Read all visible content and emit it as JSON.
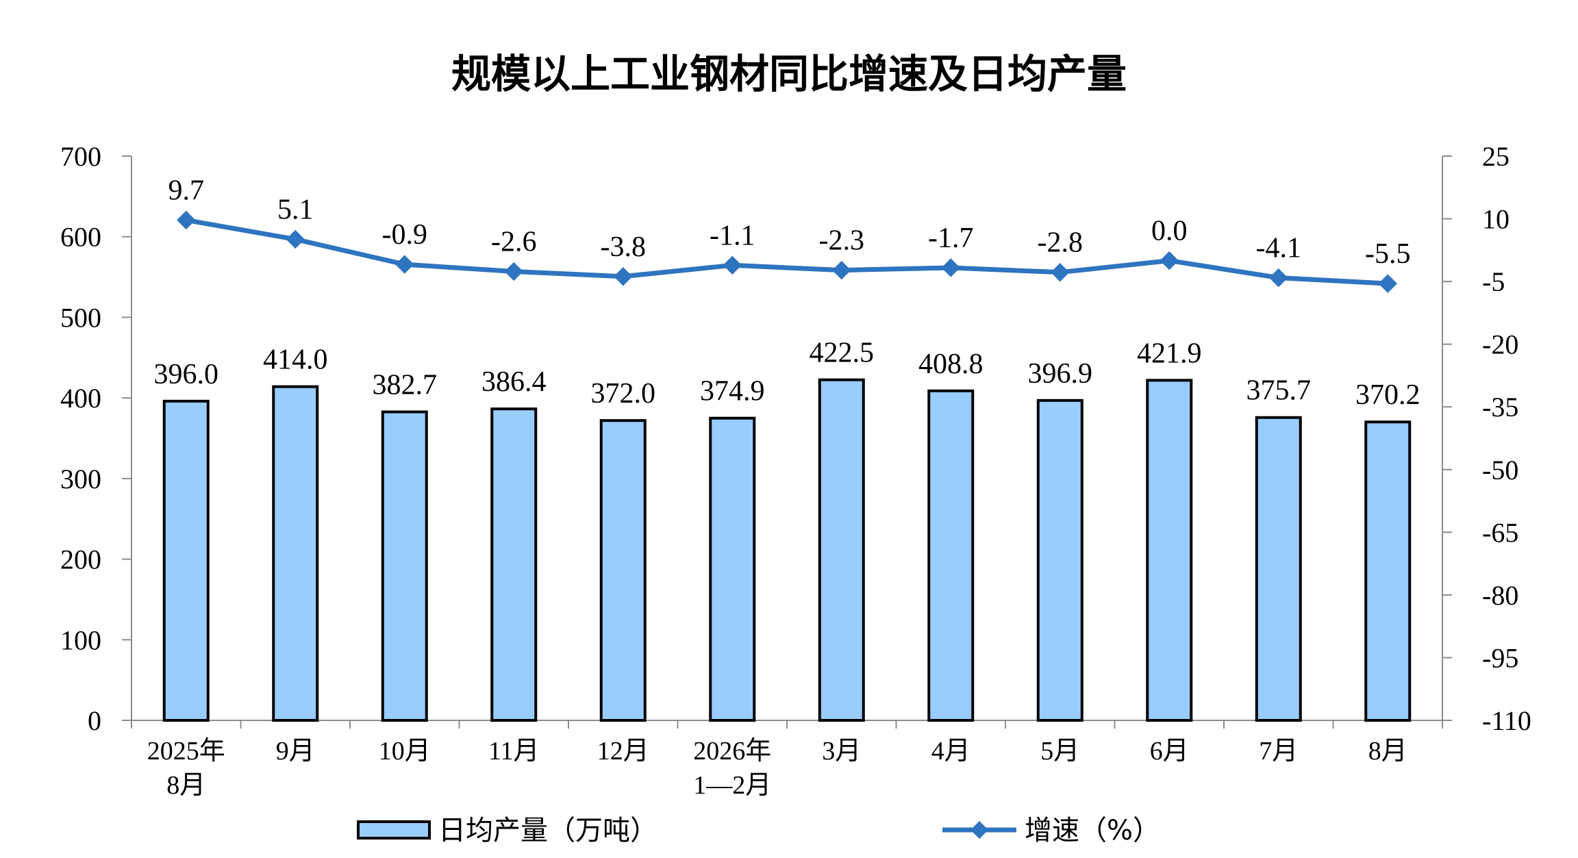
{
  "chart_data": {
    "type": "bar+line",
    "title": "规模以上工业钢材同比增速及日均产量",
    "categories": [
      [
        "2025年",
        "8月"
      ],
      [
        "9月"
      ],
      [
        "10月"
      ],
      [
        "11月"
      ],
      [
        "12月"
      ],
      [
        "2026年",
        "1—2月"
      ],
      [
        "3月"
      ],
      [
        "4月"
      ],
      [
        "5月"
      ],
      [
        "6月"
      ],
      [
        "7月"
      ],
      [
        "8月"
      ]
    ],
    "series": [
      {
        "name": "日均产量（万吨）",
        "type": "bar",
        "axis": "left",
        "color": "#99CCFF",
        "values": [
          396.0,
          414.0,
          382.7,
          386.4,
          372.0,
          374.9,
          422.5,
          408.8,
          396.9,
          421.9,
          375.7,
          370.2
        ],
        "labels": [
          "396.0",
          "414.0",
          "382.7",
          "386.4",
          "372.0",
          "374.9",
          "422.5",
          "408.8",
          "396.9",
          "421.9",
          "375.7",
          "370.2"
        ]
      },
      {
        "name": "增速（%）",
        "type": "line",
        "axis": "right",
        "color": "#2E74C0",
        "marker": "diamond",
        "values": [
          9.7,
          5.1,
          -0.9,
          -2.6,
          -3.8,
          -1.1,
          -2.3,
          -1.7,
          -2.8,
          0.0,
          -4.1,
          -5.5
        ],
        "labels": [
          "9.7",
          "5.1",
          "-0.9",
          "-2.6",
          "-3.8",
          "-1.1",
          "-2.3",
          "-1.7",
          "-2.8",
          "0.0",
          "-4.1",
          "-5.5"
        ]
      }
    ],
    "left_axis": {
      "ylim": [
        0,
        700
      ],
      "ticks": [
        0,
        100,
        200,
        300,
        400,
        500,
        600,
        700
      ]
    },
    "right_axis": {
      "ylim": [
        -110,
        25
      ],
      "ticks": [
        -110,
        -95,
        -80,
        -65,
        -50,
        -35,
        -20,
        -5,
        10,
        25
      ]
    },
    "grid": false,
    "legend_position": "bottom"
  }
}
